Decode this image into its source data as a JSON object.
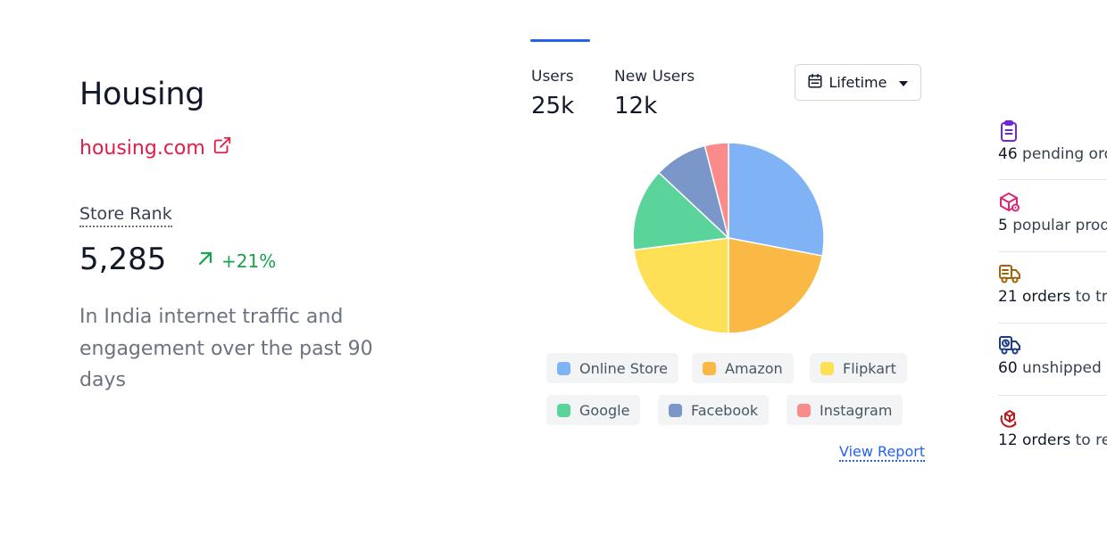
{
  "store": {
    "title": "Housing",
    "link": "housing.com",
    "rank_label": "Store Rank",
    "rank_value": "5,285",
    "rank_change": "+21%",
    "description": "In India internet traffic and engagement over the past 90 days"
  },
  "stats": {
    "users_label": "Users",
    "users_value": "25k",
    "new_users_label": "New Users",
    "new_users_value": "12k"
  },
  "date_filter": {
    "label": "Lifetime"
  },
  "chart_data": {
    "type": "pie",
    "categories": [
      "Online Store",
      "Amazon",
      "Flipkart",
      "Google",
      "Facebook",
      "Instagram"
    ],
    "values": [
      28,
      22,
      23,
      14,
      9,
      4
    ],
    "colors": [
      "#7fb3f5",
      "#f9b944",
      "#fde055",
      "#5ad49a",
      "#7b97c9",
      "#f98b8b"
    ]
  },
  "view_report": "View Report",
  "right_panel": {
    "items": [
      {
        "bold": "46",
        "rest": " pending ord",
        "color": "#6d28d9",
        "icon": "clipboard-icon"
      },
      {
        "bold": "5",
        "rest": " popular prod",
        "color": "#db2777",
        "icon": "box-tag-icon"
      },
      {
        "bold": "21 orders",
        "rest": " to tra",
        "color": "#a16207",
        "icon": "truck-doc-icon"
      },
      {
        "bold": "60",
        "rest": " unshipped",
        "color": "#1e3a8a",
        "icon": "truck-clock-icon"
      },
      {
        "bold": "12 orders",
        "rest": " to ret",
        "color": "#b91c1c",
        "icon": "box-return-icon"
      }
    ]
  }
}
